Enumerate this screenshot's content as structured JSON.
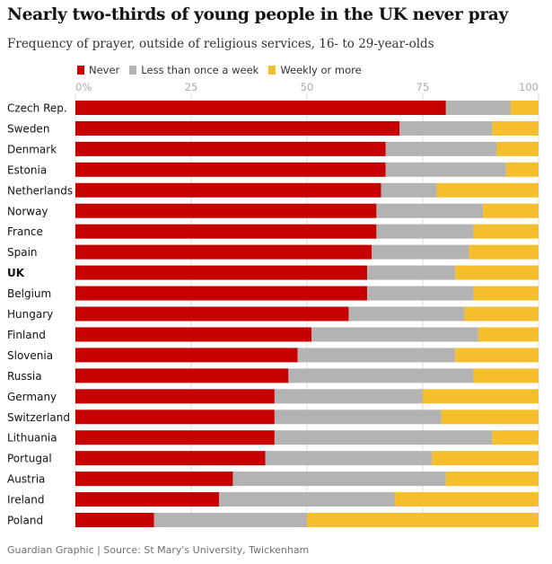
{
  "header": {
    "title": "Nearly two-thirds of young people in the UK never pray",
    "subtitle": "Frequency of prayer, outside of religious services, 16- to 29-year-olds"
  },
  "legend": [
    {
      "name": "Never",
      "color": "#c70000"
    },
    {
      "name": "Less than once a week",
      "color": "#b3b3b3"
    },
    {
      "name": "Weekly or more",
      "color": "#f5be2c"
    }
  ],
  "chart_data": {
    "type": "bar",
    "orientation": "horizontal",
    "stacked": true,
    "title": "Nearly two-thirds of young people in the UK never pray",
    "subtitle": "Frequency of prayer, outside of religious services, 16- to 29-year-olds",
    "xlim": [
      0,
      100
    ],
    "x_ticks": [
      "0%",
      "25",
      "50",
      "75",
      "100"
    ],
    "tick_values": [
      0,
      25,
      50,
      75,
      100
    ],
    "highlight": "UK",
    "categories": [
      "Czech Rep.",
      "Sweden",
      "Denmark",
      "Estonia",
      "Netherlands",
      "Norway",
      "France",
      "Spain",
      "UK",
      "Belgium",
      "Hungary",
      "Finland",
      "Slovenia",
      "Russia",
      "Germany",
      "Switzerland",
      "Lithuania",
      "Portugal",
      "Austria",
      "Ireland",
      "Poland"
    ],
    "series": [
      {
        "name": "Never",
        "color": "#c70000",
        "values": [
          80,
          70,
          67,
          67,
          66,
          65,
          65,
          64,
          63,
          63,
          59,
          51,
          48,
          46,
          43,
          43,
          43,
          41,
          34,
          31,
          17
        ]
      },
      {
        "name": "Less than once a week",
        "color": "#b3b3b3",
        "values": [
          14,
          20,
          24,
          26,
          12,
          23,
          21,
          21,
          19,
          23,
          25,
          36,
          34,
          40,
          32,
          36,
          47,
          36,
          46,
          38,
          33
        ]
      },
      {
        "name": "Weekly or more",
        "color": "#f5be2c",
        "values": [
          6,
          10,
          9,
          7,
          22,
          12,
          14,
          15,
          18,
          14,
          16,
          13,
          18,
          14,
          25,
          21,
          10,
          23,
          20,
          31,
          50
        ]
      }
    ]
  },
  "source": "Guardian Graphic | Source: St Mary's University, Twickenham"
}
